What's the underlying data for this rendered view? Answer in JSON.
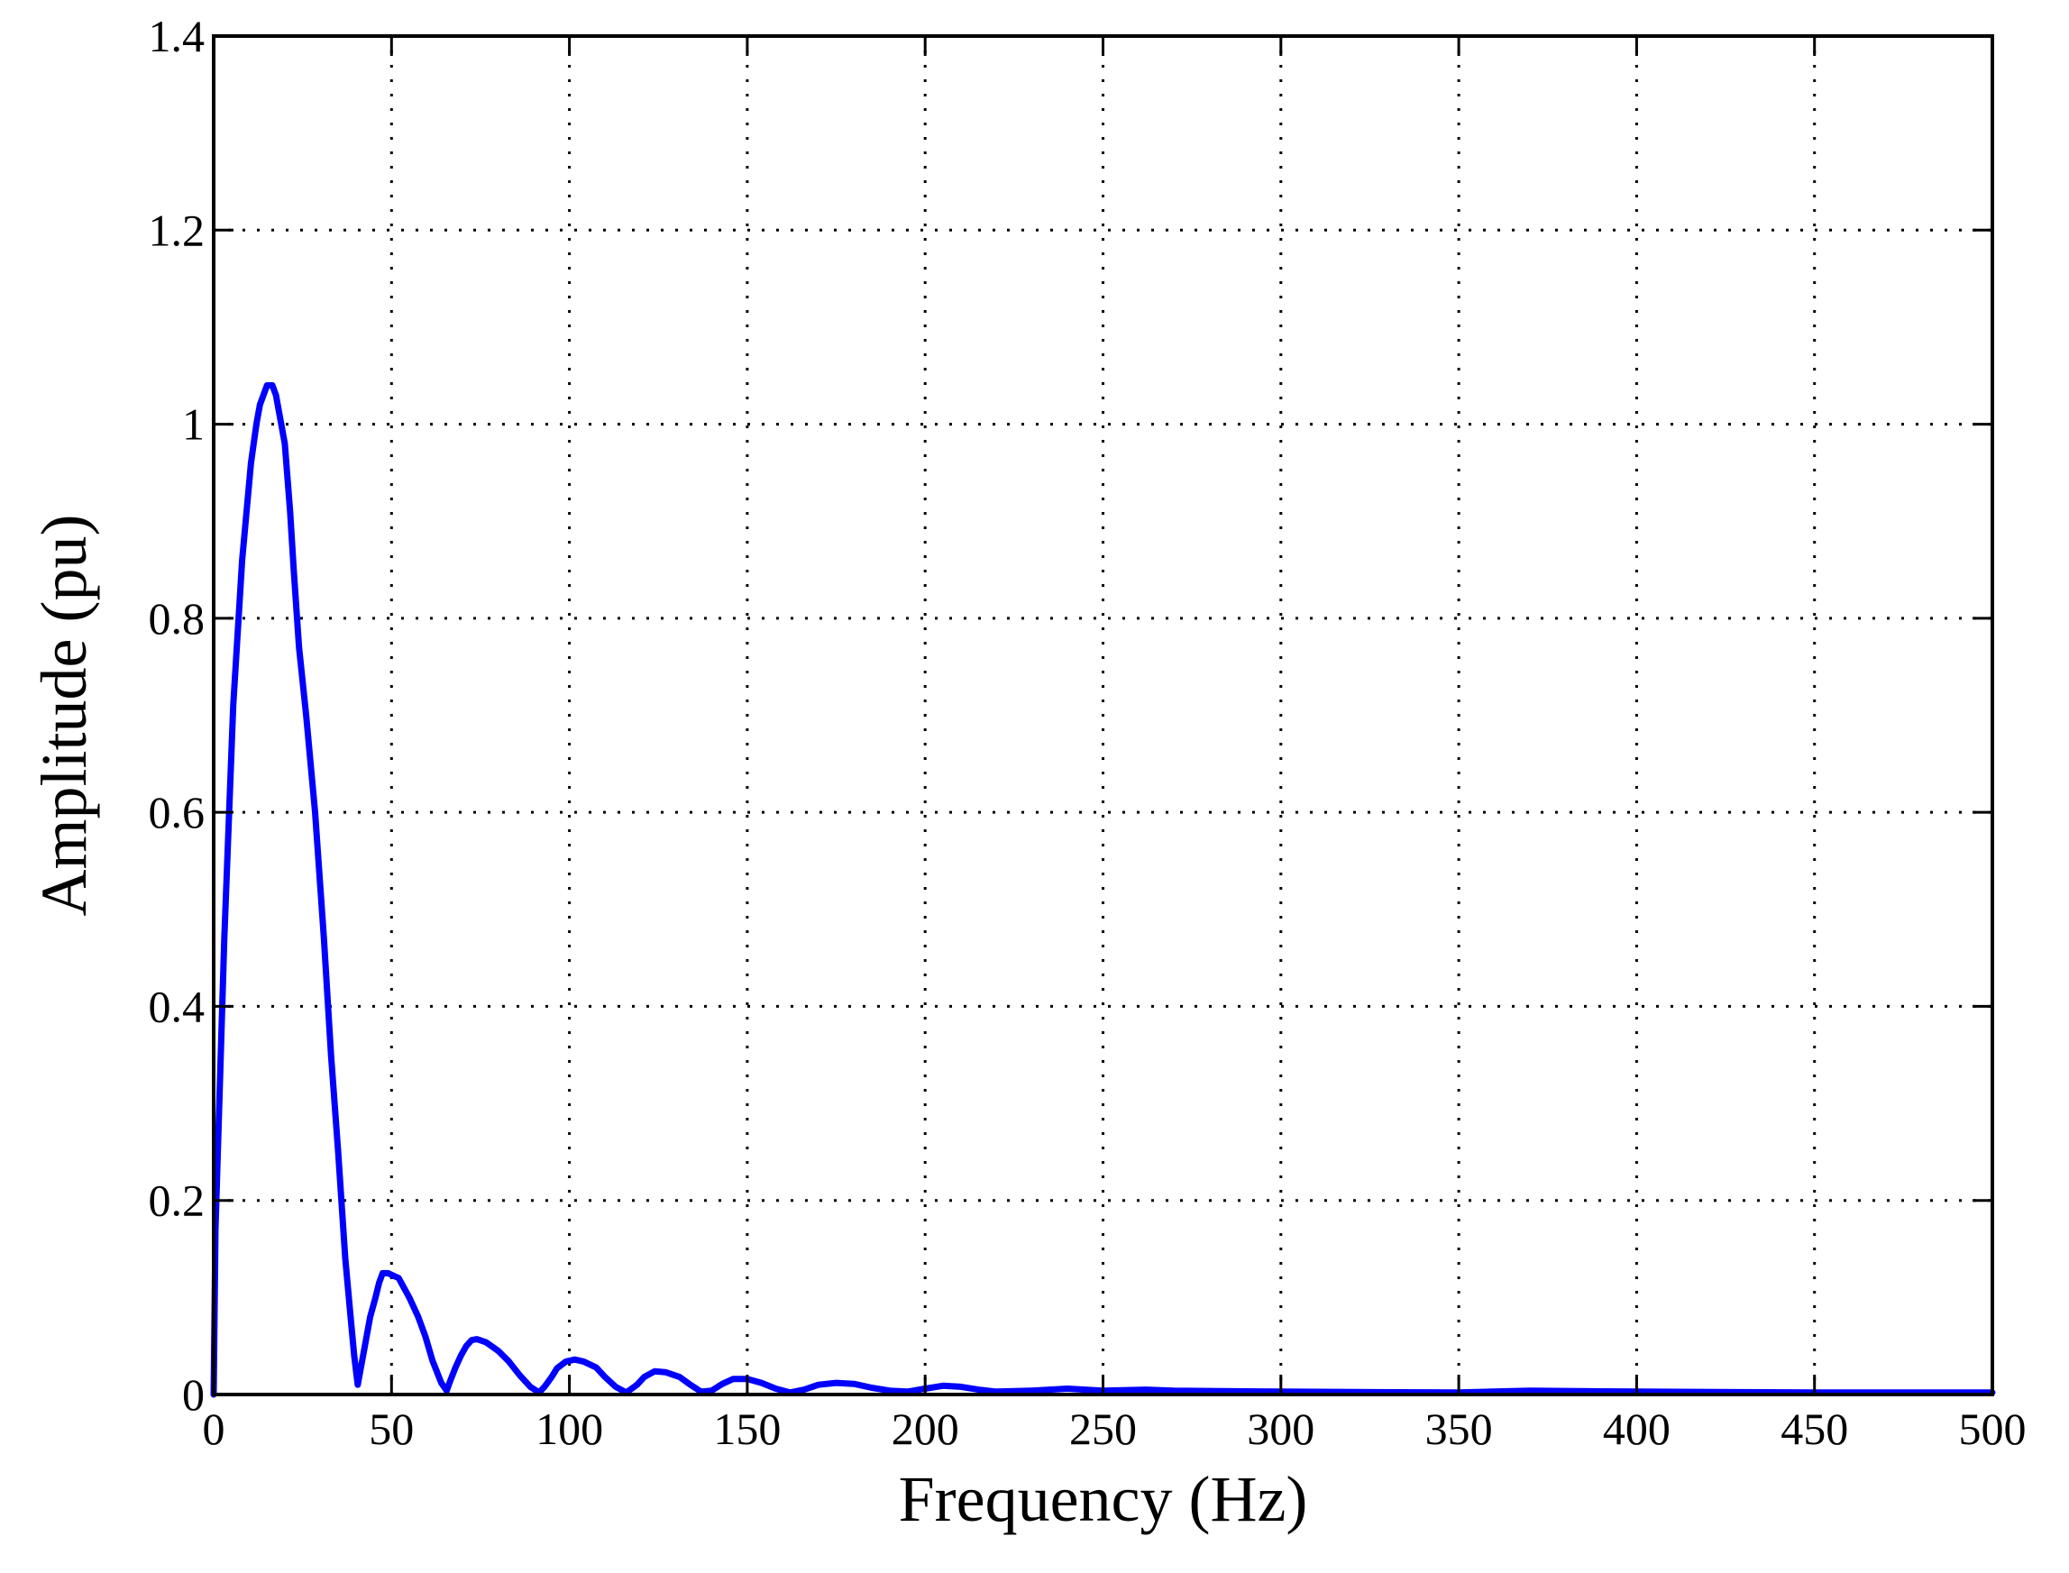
{
  "chart_data": {
    "type": "line",
    "title": "",
    "xlabel": "Frequency (Hz)",
    "ylabel": "Amplitude (pu)",
    "xlim": [
      0,
      500
    ],
    "ylim": [
      0,
      1.4
    ],
    "xticks": [
      0,
      50,
      100,
      150,
      200,
      250,
      300,
      350,
      400,
      450,
      500
    ],
    "xtick_labels": [
      "0",
      "50",
      "100",
      "150",
      "200",
      "250",
      "300",
      "350",
      "400",
      "450",
      "500"
    ],
    "yticks": [
      0,
      0.2,
      0.4,
      0.6,
      0.8,
      1.0,
      1.2,
      1.4
    ],
    "ytick_labels": [
      "0",
      "0.2",
      "0.4",
      "0.6",
      "0.8",
      "1",
      "1.2",
      "1.4"
    ],
    "grid": true,
    "grid_style": "dotted",
    "legend": false,
    "series": [
      {
        "color": "#0000ff",
        "x": [
          0,
          0.5,
          3,
          5.5,
          8,
          10.5,
          12,
          13,
          15,
          16.5,
          17.5,
          18.5,
          20,
          21.5,
          22.5,
          24,
          26,
          28.5,
          31,
          33,
          35,
          37,
          38.5,
          39.5,
          40.5,
          42.5,
          44,
          45.5,
          46.5,
          47.5,
          49,
          52,
          55,
          57.5,
          59.5,
          61.5,
          64,
          65.5,
          66.5,
          68,
          69.5,
          71,
          72.5,
          74,
          76.5,
          80,
          83,
          86,
          89,
          91.5,
          93,
          95,
          96.5,
          99,
          101.5,
          104,
          107.5,
          110,
          113,
          116,
          119,
          121,
          124,
          127,
          131,
          134,
          137,
          140,
          143,
          146,
          150,
          154,
          158,
          162,
          166,
          170,
          175,
          180,
          185,
          190,
          195,
          200,
          205,
          210,
          215,
          220,
          230,
          240,
          250,
          262,
          270,
          300,
          350,
          370,
          400,
          450,
          500
        ],
        "y": [
          0,
          0.17,
          0.47,
          0.71,
          0.86,
          0.96,
          1.0,
          1.02,
          1.04,
          1.04,
          1.03,
          1.01,
          0.98,
          0.91,
          0.85,
          0.77,
          0.7,
          0.6,
          0.47,
          0.35,
          0.25,
          0.14,
          0.08,
          0.04,
          0.01,
          0.05,
          0.08,
          0.1,
          0.115,
          0.125,
          0.125,
          0.12,
          0.1,
          0.08,
          0.06,
          0.035,
          0.012,
          0.004,
          0.014,
          0.028,
          0.04,
          0.05,
          0.056,
          0.057,
          0.054,
          0.045,
          0.034,
          0.02,
          0.008,
          0.002,
          0.008,
          0.018,
          0.027,
          0.034,
          0.036,
          0.034,
          0.028,
          0.018,
          0.008,
          0.002,
          0.01,
          0.018,
          0.024,
          0.023,
          0.018,
          0.01,
          0.003,
          0.004,
          0.011,
          0.016,
          0.016,
          0.012,
          0.006,
          0.002,
          0.005,
          0.01,
          0.012,
          0.011,
          0.007,
          0.004,
          0.003,
          0.006,
          0.009,
          0.008,
          0.005,
          0.003,
          0.004,
          0.006,
          0.004,
          0.005,
          0.004,
          0.003,
          0.002,
          0.004,
          0.003,
          0.002,
          0.002
        ]
      }
    ]
  }
}
